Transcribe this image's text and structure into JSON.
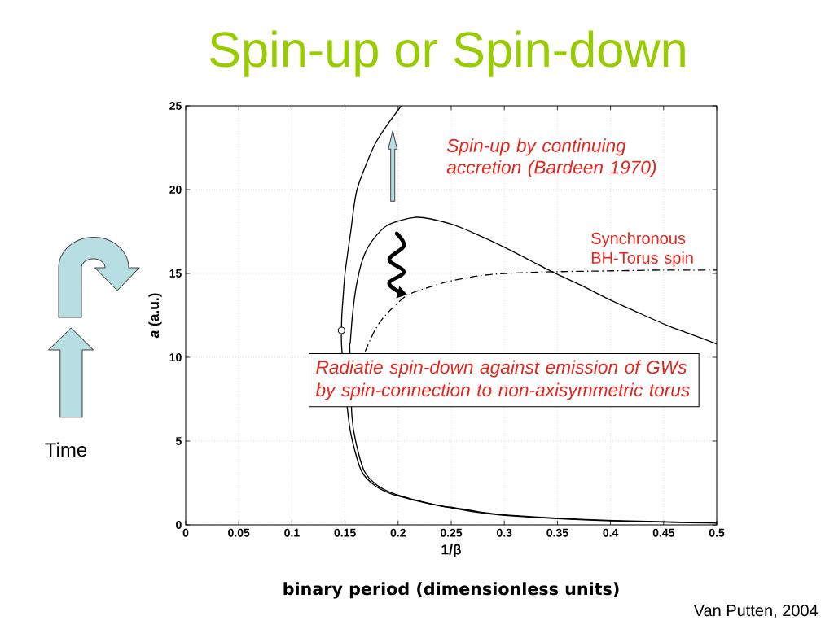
{
  "chart_data": {
    "type": "line",
    "title": "Spin-up or Spin-down",
    "xlabel": "1/β",
    "ylabel": "*a* (a.u.)",
    "xlim": [
      0,
      0.5
    ],
    "ylim": [
      0,
      25
    ],
    "xticks": [
      0,
      0.05,
      0.1,
      0.15,
      0.2,
      0.25,
      0.3,
      0.35,
      0.4,
      0.45,
      0.5
    ],
    "yticks": [
      0,
      5,
      10,
      15,
      20,
      25
    ],
    "grid": true,
    "series": [
      {
        "color": "#000000",
        "x": [
          0.203,
          0.188,
          0.1766,
          0.1613,
          0.1554,
          0.15,
          0.148,
          0.147,
          0.1467,
          0.147,
          0.153,
          0.157,
          0.1656,
          0.178,
          0.193,
          0.211,
          0.239,
          0.25,
          0.275,
          0.3,
          0.35,
          0.4,
          0.45,
          0.5
        ],
        "values": [
          25,
          23.7,
          22.5,
          20,
          17.5,
          15,
          13.4,
          12.5,
          11.6,
          10.5,
          6.5,
          5,
          3.2,
          2.35,
          1.86,
          1.54,
          1.13,
          1.02,
          0.75,
          0.57,
          0.37,
          0.24,
          0.16,
          0.1
        ]
      },
      {
        "color": "#000000",
        "x": [
          0.5,
          0.4745,
          0.4515,
          0.423,
          0.4003,
          0.372,
          0.3466,
          0.3236,
          0.3006,
          0.275,
          0.2495,
          0.218,
          0.1907,
          0.175,
          0.1664,
          0.1605,
          0.157,
          0.155,
          0.1545,
          0.1565,
          0.16,
          0.1682,
          0.1805,
          0.1958,
          0.213,
          0.241,
          0.252,
          0.277,
          0.302,
          0.352,
          0.402,
          0.452,
          0.5
        ],
        "values": [
          10.8,
          11.4,
          11.95,
          12.75,
          13.4,
          14.3,
          15.05,
          15.8,
          16.55,
          17.3,
          17.95,
          18.35,
          17.9,
          16.9,
          15.8,
          14.2,
          12.5,
          10.9,
          10.5,
          6.5,
          5,
          3.2,
          2.35,
          1.86,
          1.54,
          1.13,
          1.04,
          0.77,
          0.59,
          0.39,
          0.26,
          0.18,
          0.12
        ]
      },
      {
        "name": "Synchronous BH-Torus spin",
        "color": "#000000",
        "line_style": "dashdot",
        "x": [
          0.169,
          0.178,
          0.188,
          0.2086,
          0.2354,
          0.2495,
          0.275,
          0.3006,
          0.3466,
          0.3976,
          0.45,
          0.5
        ],
        "values": [
          10.35,
          11.6,
          12.5,
          13.7,
          14.3,
          14.55,
          14.85,
          15.0,
          15.1,
          15.15,
          15.2,
          15.2
        ]
      },
      {
        "type": "scatter",
        "marker": "circle",
        "color": "#000000",
        "x": [
          0.1467
        ],
        "values": [
          11.6
        ]
      }
    ],
    "annotations": [
      "Spin-up by continuing accretion (Bardeen 1970)",
      "Radiatie spin-down against emission of GWs by spin-connection to non-axisymmetric torus",
      "Time",
      "binary period (dimensionless units)",
      "Van Putten, 2004"
    ]
  }
}
